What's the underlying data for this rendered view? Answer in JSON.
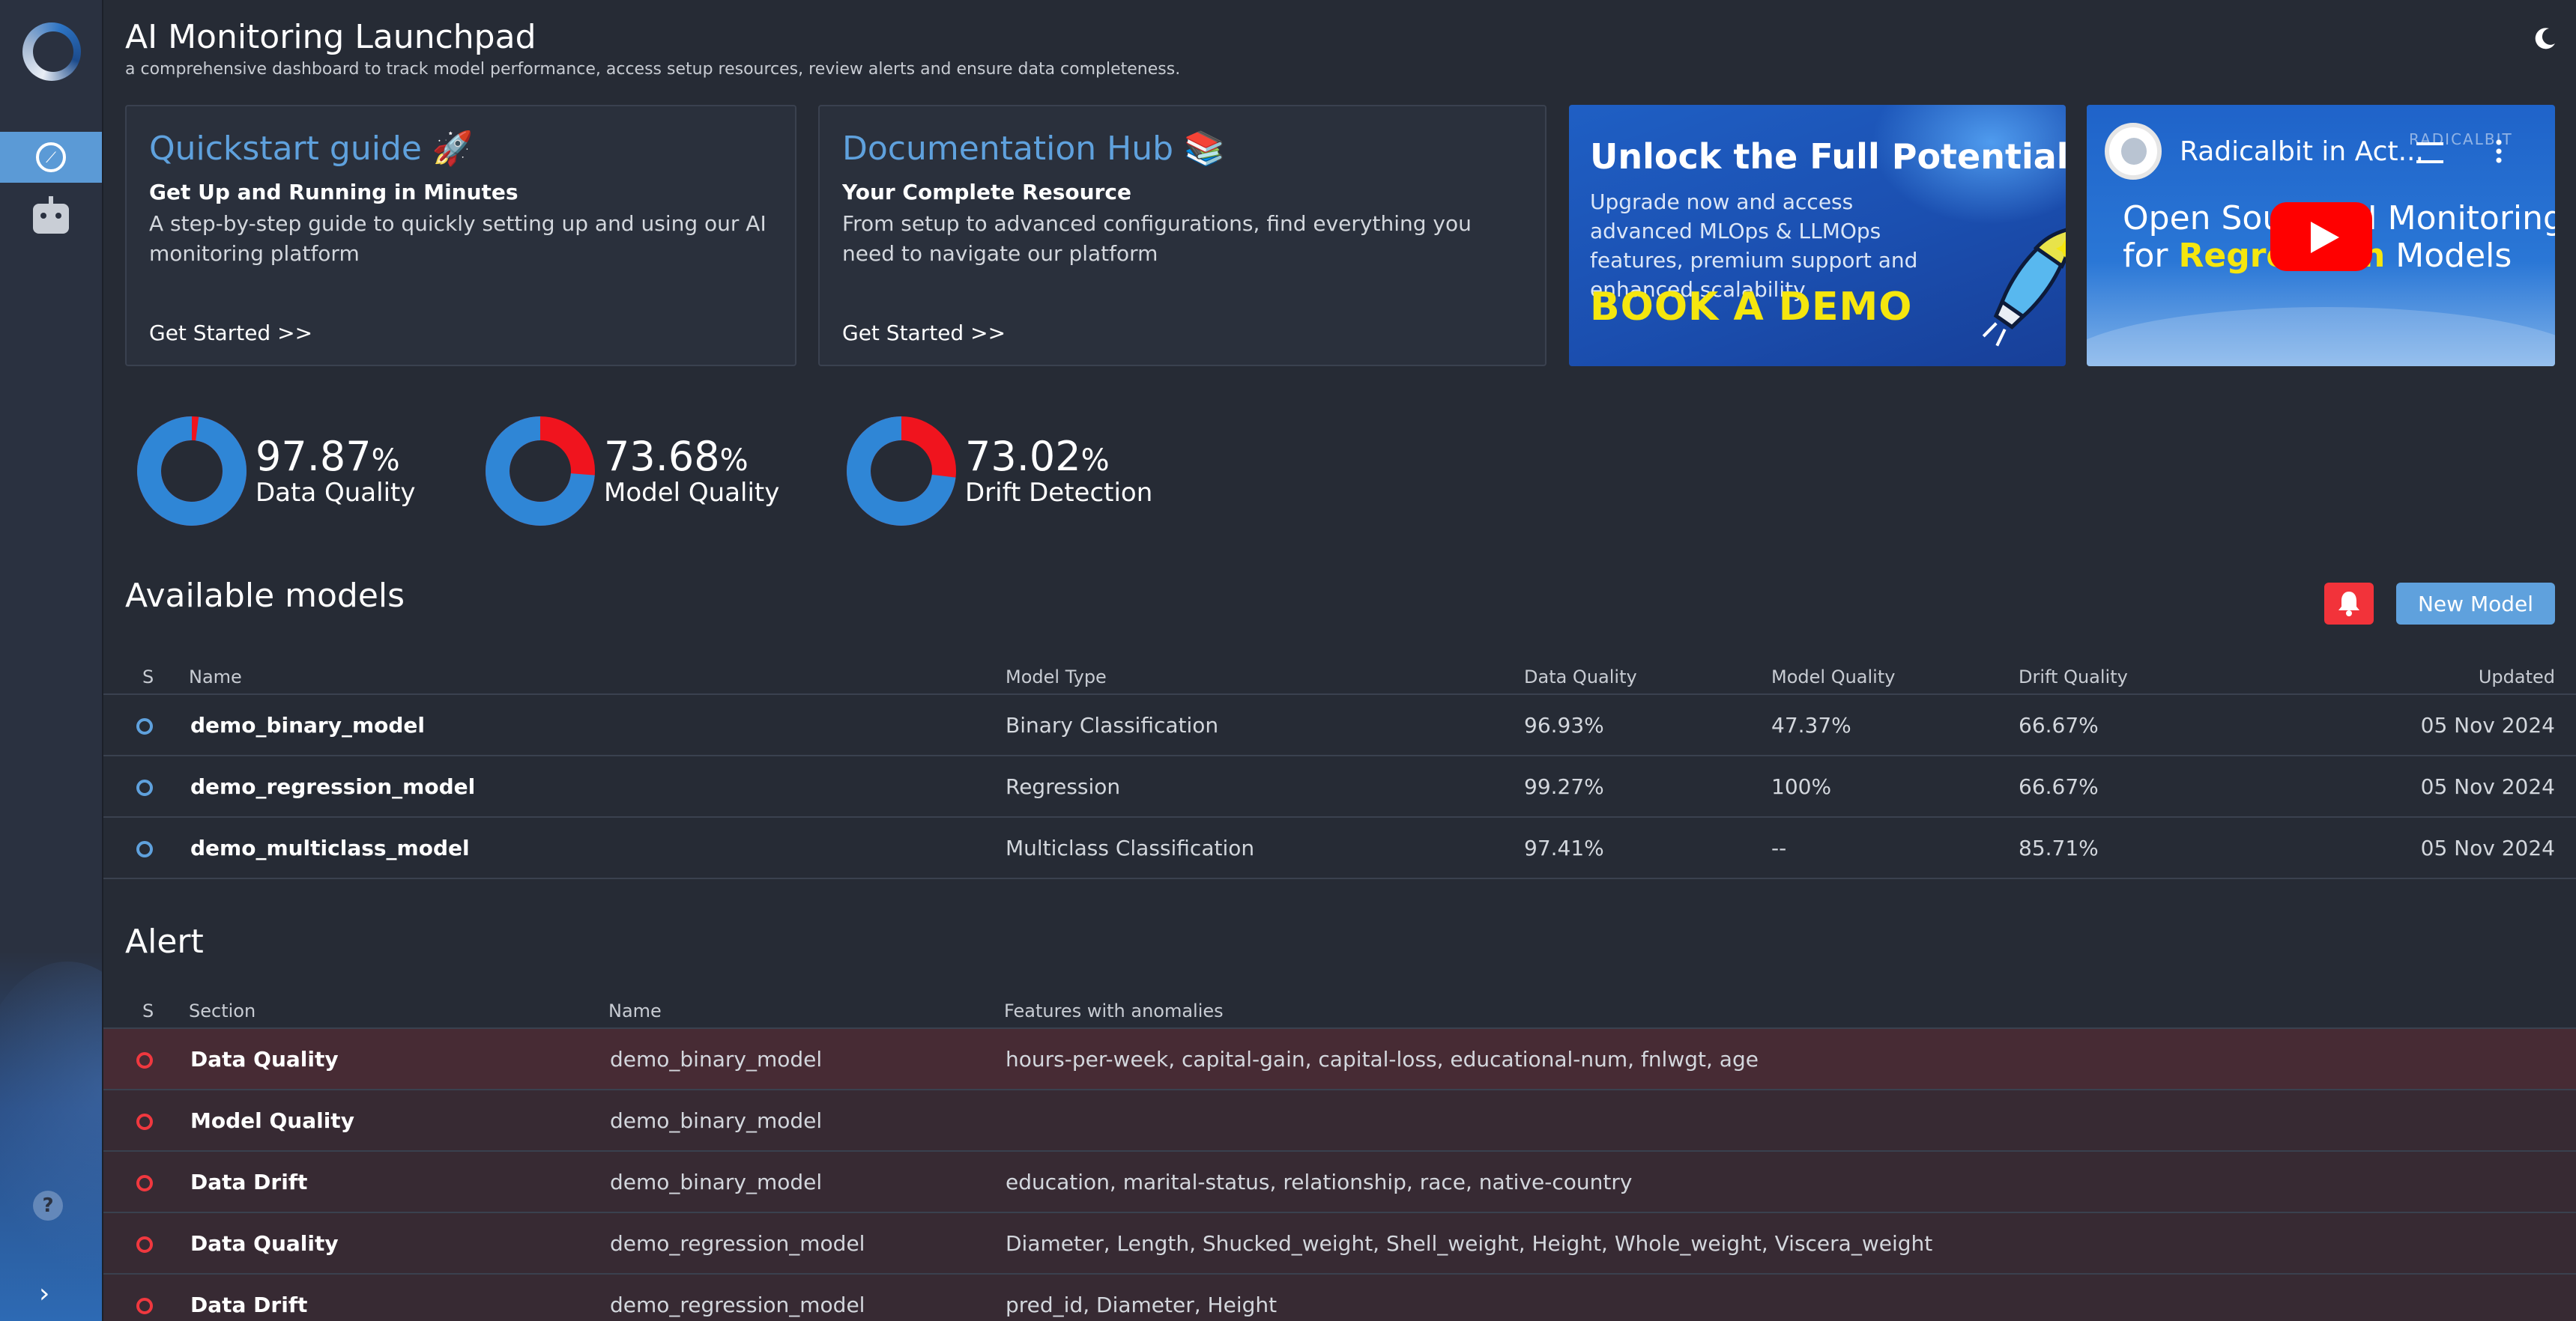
{
  "header": {
    "title": "AI Monitoring Launchpad",
    "subtitle": "a comprehensive dashboard to track model performance, access setup resources, review alerts and ensure data completeness."
  },
  "cards": {
    "quickstart": {
      "title": "Quickstart guide 🚀",
      "subtitle": "Get Up and Running in Minutes",
      "description": "A step-by-step guide to quickly setting up and using our AI monitoring platform",
      "link": "Get Started >>"
    },
    "docs": {
      "title": "Documentation Hub 📚",
      "subtitle": "Your Complete Resource",
      "description": "From setup to advanced configurations, find everything you need to navigate our platform",
      "link": "Get Started >>"
    },
    "promo": {
      "title": "Unlock the Full Potential",
      "description": "Upgrade now and access advanced MLOps & LLMOps features, premium support and enhanced scalability",
      "cta": "BOOK A DEMO"
    },
    "video": {
      "title": "Radicalbit in Act...",
      "brand": "RADICALBIT",
      "line1": "Open Source AI Monitoring",
      "line2_prefix": "for ",
      "line2_highlight": "Regression",
      "line2_suffix": " Models"
    }
  },
  "stats": [
    {
      "value": "97.87",
      "unit": "%",
      "label": "Data Quality",
      "fraction": 0.9787
    },
    {
      "value": "73.68",
      "unit": "%",
      "label": "Model Quality",
      "fraction": 0.7368
    },
    {
      "value": "73.02",
      "unit": "%",
      "label": "Drift Detection",
      "fraction": 0.7302
    }
  ],
  "models": {
    "title": "Available models",
    "new_button": "New Model",
    "columns": {
      "status": "S",
      "name": "Name",
      "type": "Model Type",
      "data_quality": "Data Quality",
      "model_quality": "Model Quality",
      "drift_quality": "Drift Quality",
      "updated": "Updated"
    },
    "rows": [
      {
        "name": "demo_binary_model",
        "type": "Binary Classification",
        "data_quality": "96.93%",
        "model_quality": "47.37%",
        "drift_quality": "66.67%",
        "updated": "05 Nov 2024"
      },
      {
        "name": "demo_regression_model",
        "type": "Regression",
        "data_quality": "99.27%",
        "model_quality": "100%",
        "drift_quality": "66.67%",
        "updated": "05 Nov 2024"
      },
      {
        "name": "demo_multiclass_model",
        "type": "Multiclass Classification",
        "data_quality": "97.41%",
        "model_quality": "--",
        "drift_quality": "85.71%",
        "updated": "05 Nov 2024"
      }
    ]
  },
  "alerts": {
    "title": "Alert",
    "columns": {
      "status": "S",
      "section": "Section",
      "name": "Name",
      "features": "Features with anomalies"
    },
    "rows": [
      {
        "section": "Data Quality",
        "name": "demo_binary_model",
        "features": "hours-per-week, capital-gain, capital-loss, educational-num, fnlwgt, age"
      },
      {
        "section": "Model Quality",
        "name": "demo_binary_model",
        "features": ""
      },
      {
        "section": "Data Drift",
        "name": "demo_binary_model",
        "features": "education, marital-status, relationship, race, native-country"
      },
      {
        "section": "Data Quality",
        "name": "demo_regression_model",
        "features": "Diameter, Length, Shucked_weight, Shell_weight, Height, Whole_weight, Viscera_weight"
      },
      {
        "section": "Data Drift",
        "name": "demo_regression_model",
        "features": "pred_id, Diameter, Height"
      }
    ]
  },
  "sidebar": {
    "help_label": "?",
    "expand_label": "›"
  },
  "colors": {
    "accent": "#5fa1dd",
    "donut_fill": "#2f86d6",
    "donut_miss": "#f0141e",
    "alert": "#f0383f"
  }
}
